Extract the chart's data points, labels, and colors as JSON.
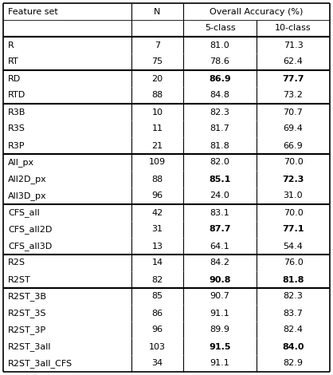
{
  "col_headers": [
    "Feature set",
    "N",
    "Overall Accuracy (%)"
  ],
  "sub_headers": [
    "5-class",
    "10-class"
  ],
  "rows": [
    {
      "group": 0,
      "feature": "R",
      "N": "7",
      "five": "81.0",
      "ten": "71.3",
      "bold5": false,
      "bold10": false
    },
    {
      "group": 0,
      "feature": "RT",
      "N": "75",
      "five": "78.6",
      "ten": "62.4",
      "bold5": false,
      "bold10": false
    },
    {
      "group": 1,
      "feature": "RD",
      "N": "20",
      "five": "86.9",
      "ten": "77.7",
      "bold5": true,
      "bold10": true
    },
    {
      "group": 1,
      "feature": "RTD",
      "N": "88",
      "five": "84.8",
      "ten": "73.2",
      "bold5": false,
      "bold10": false
    },
    {
      "group": 2,
      "feature": "R3B",
      "N": "10",
      "five": "82.3",
      "ten": "70.7",
      "bold5": false,
      "bold10": false
    },
    {
      "group": 2,
      "feature": "R3S",
      "N": "11",
      "five": "81.7",
      "ten": "69.4",
      "bold5": false,
      "bold10": false
    },
    {
      "group": 2,
      "feature": "R3P",
      "N": "21",
      "five": "81.8",
      "ten": "66.9",
      "bold5": false,
      "bold10": false
    },
    {
      "group": 3,
      "feature": "All_px",
      "N": "109",
      "five": "82.0",
      "ten": "70.0",
      "bold5": false,
      "bold10": false
    },
    {
      "group": 3,
      "feature": "All2D_px",
      "N": "88",
      "five": "85.1",
      "ten": "72.3",
      "bold5": true,
      "bold10": true
    },
    {
      "group": 3,
      "feature": "All3D_px",
      "N": "96",
      "five": "24.0",
      "ten": "31.0",
      "bold5": false,
      "bold10": false
    },
    {
      "group": 4,
      "feature": "CFS_all",
      "N": "42",
      "five": "83.1",
      "ten": "70.0",
      "bold5": false,
      "bold10": false
    },
    {
      "group": 4,
      "feature": "CFS_all2D",
      "N": "31",
      "five": "87.7",
      "ten": "77.1",
      "bold5": true,
      "bold10": true
    },
    {
      "group": 4,
      "feature": "CFS_all3D",
      "N": "13",
      "five": "64.1",
      "ten": "54.4",
      "bold5": false,
      "bold10": false
    },
    {
      "group": 5,
      "feature": "R2S",
      "N": "14",
      "five": "84.2",
      "ten": "76.0",
      "bold5": false,
      "bold10": false
    },
    {
      "group": 5,
      "feature": "R2ST",
      "N": "82",
      "five": "90.8",
      "ten": "81.8",
      "bold5": true,
      "bold10": true
    },
    {
      "group": 6,
      "feature": "R2ST_3B",
      "N": "85",
      "five": "90.7",
      "ten": "82.3",
      "bold5": false,
      "bold10": false
    },
    {
      "group": 6,
      "feature": "R2ST_3S",
      "N": "86",
      "five": "91.1",
      "ten": "83.7",
      "bold5": false,
      "bold10": false
    },
    {
      "group": 6,
      "feature": "R2ST_3P",
      "N": "96",
      "five": "89.9",
      "ten": "82.4",
      "bold5": false,
      "bold10": false
    },
    {
      "group": 6,
      "feature": "R2ST_3all",
      "N": "103",
      "five": "91.5",
      "ten": "84.0",
      "bold5": true,
      "bold10": true
    },
    {
      "group": 6,
      "feature": "R2ST_3all_CFS",
      "N": "34",
      "five": "91.1",
      "ten": "82.9",
      "bold5": false,
      "bold10": false
    }
  ],
  "group_separators": [
    0,
    2,
    4,
    7,
    10,
    13,
    15
  ],
  "bg_color": "#ffffff",
  "text_color": "#000000",
  "font_size": 8.0,
  "header_font_size": 8.0
}
